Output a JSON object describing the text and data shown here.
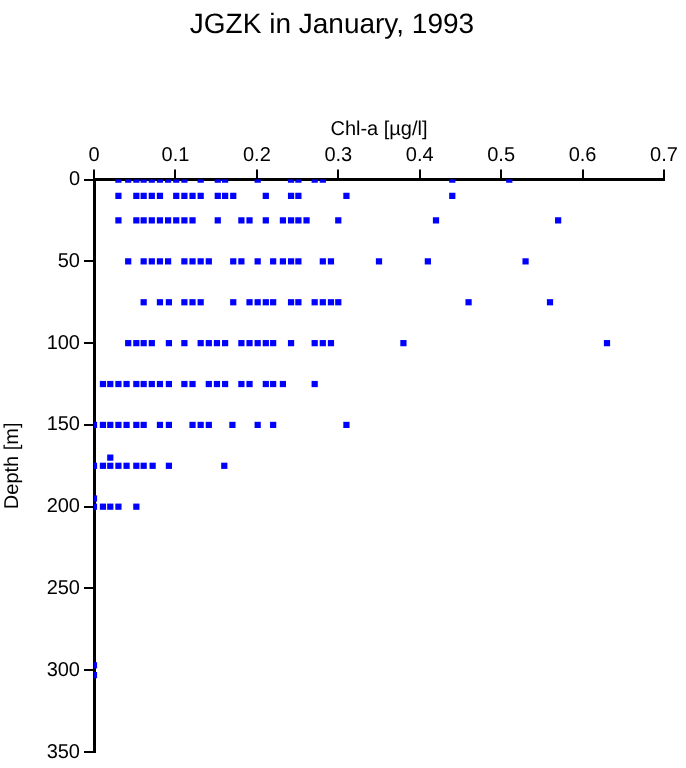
{
  "chart_data": {
    "type": "scatter",
    "title": "JGZK in January, 1993",
    "xlabel": "Chl-a [µg/l]",
    "ylabel": "Depth [m]",
    "xlim": [
      0,
      0.7
    ],
    "xticks": [
      0,
      0.1,
      0.2,
      0.3,
      0.4,
      0.5,
      0.6,
      0.7
    ],
    "ylim": [
      350,
      0
    ],
    "yticks": [
      0,
      50,
      100,
      150,
      200,
      250,
      300,
      350
    ],
    "grid": false,
    "legend": false,
    "marker": "square",
    "series": [
      {
        "color": "#0000ff",
        "x": [
          0.03,
          0.042,
          0.052,
          0.061,
          0.071,
          0.081,
          0.091,
          0.101,
          0.111,
          0.131,
          0.152,
          0.161,
          0.201,
          0.242,
          0.251,
          0.271,
          0.281,
          0.44,
          0.51,
          0.03,
          0.052,
          0.061,
          0.071,
          0.081,
          0.101,
          0.111,
          0.121,
          0.131,
          0.152,
          0.161,
          0.171,
          0.211,
          0.242,
          0.251,
          0.31,
          0.44,
          0.03,
          0.052,
          0.061,
          0.071,
          0.081,
          0.091,
          0.101,
          0.111,
          0.121,
          0.152,
          0.181,
          0.191,
          0.211,
          0.232,
          0.242,
          0.251,
          0.261,
          0.3,
          0.42,
          0.57,
          0.042,
          0.061,
          0.071,
          0.081,
          0.091,
          0.111,
          0.121,
          0.131,
          0.141,
          0.171,
          0.181,
          0.201,
          0.22,
          0.232,
          0.242,
          0.251,
          0.281,
          0.291,
          0.35,
          0.41,
          0.53,
          0.061,
          0.081,
          0.092,
          0.111,
          0.121,
          0.131,
          0.171,
          0.191,
          0.201,
          0.211,
          0.22,
          0.242,
          0.251,
          0.271,
          0.281,
          0.291,
          0.3,
          0.46,
          0.56,
          0.042,
          0.052,
          0.061,
          0.071,
          0.092,
          0.111,
          0.131,
          0.141,
          0.151,
          0.161,
          0.181,
          0.191,
          0.201,
          0.211,
          0.22,
          0.242,
          0.271,
          0.281,
          0.291,
          0.38,
          0.63,
          0.011,
          0.02,
          0.03,
          0.04,
          0.052,
          0.061,
          0.071,
          0.081,
          0.092,
          0.111,
          0.121,
          0.141,
          0.151,
          0.161,
          0.181,
          0.191,
          0.211,
          0.22,
          0.232,
          0.271,
          0,
          0.011,
          0.02,
          0.03,
          0.04,
          0.052,
          0.061,
          0.081,
          0.092,
          0.121,
          0.131,
          0.141,
          0.17,
          0.201,
          0.22,
          0.31,
          0,
          0.011,
          0.02,
          0.03,
          0.04,
          0.052,
          0.061,
          0.072,
          0.092,
          0.16,
          0.02,
          0,
          0.011,
          0.02,
          0.03,
          0.052,
          0,
          0,
          0
        ],
        "values": [
          0,
          0,
          0,
          0,
          0,
          0,
          0,
          0,
          0,
          0,
          0,
          0,
          0,
          0,
          0,
          0,
          0,
          0,
          0,
          10,
          10,
          10,
          10,
          10,
          10,
          10,
          10,
          10,
          10,
          10,
          10,
          10,
          10,
          10,
          10,
          10,
          25,
          25,
          25,
          25,
          25,
          25,
          25,
          25,
          25,
          25,
          25,
          25,
          25,
          25,
          25,
          25,
          25,
          25,
          25,
          25,
          50,
          50,
          50,
          50,
          50,
          50,
          50,
          50,
          50,
          50,
          50,
          50,
          50,
          50,
          50,
          50,
          50,
          50,
          50,
          50,
          50,
          75,
          75,
          75,
          75,
          75,
          75,
          75,
          75,
          75,
          75,
          75,
          75,
          75,
          75,
          75,
          75,
          75,
          75,
          75,
          100,
          100,
          100,
          100,
          100,
          100,
          100,
          100,
          100,
          100,
          100,
          100,
          100,
          100,
          100,
          100,
          100,
          100,
          100,
          100,
          100,
          125,
          125,
          125,
          125,
          125,
          125,
          125,
          125,
          125,
          125,
          125,
          125,
          125,
          125,
          125,
          125,
          125,
          125,
          125,
          125,
          150,
          150,
          150,
          150,
          150,
          150,
          150,
          150,
          150,
          150,
          150,
          150,
          150,
          150,
          150,
          150,
          175,
          175,
          175,
          175,
          175,
          175,
          175,
          175,
          175,
          175,
          170,
          200,
          200,
          200,
          200,
          200,
          195,
          297,
          303
        ]
      }
    ]
  }
}
